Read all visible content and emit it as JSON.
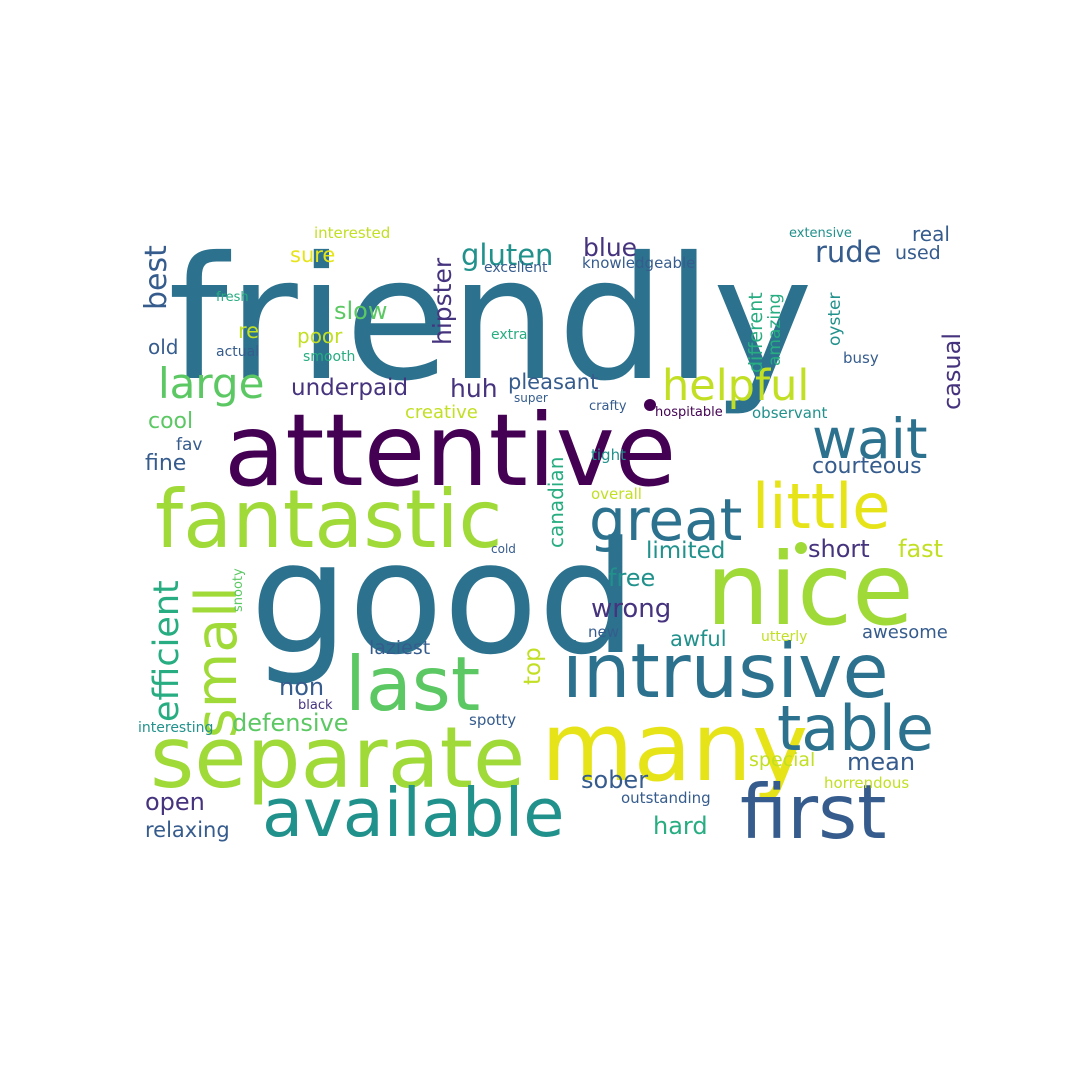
{
  "palette": {
    "dark_purple": "#440154",
    "indigo": "#46337e",
    "slate_blue": "#365c8d",
    "steel_teal": "#2c728e",
    "teal": "#21918c",
    "sea_green": "#27ad81",
    "green": "#5cc863",
    "lime": "#a0da39",
    "yellow_green": "#c2df23",
    "yellow": "#e6e419"
  },
  "words": [
    {
      "text": "friendly",
      "color": "steel_teal"
    },
    {
      "text": "attentive",
      "color": "dark_purple"
    },
    {
      "text": "good",
      "color": "steel_teal"
    },
    {
      "text": "nice",
      "color": "lime"
    },
    {
      "text": "fantastic",
      "color": "lime"
    },
    {
      "text": "many",
      "color": "yellow"
    },
    {
      "text": "separate",
      "color": "lime"
    },
    {
      "text": "intrusive",
      "color": "steel_teal"
    },
    {
      "text": "last",
      "color": "green"
    },
    {
      "text": "first",
      "color": "slate_blue"
    },
    {
      "text": "available",
      "color": "teal"
    },
    {
      "text": "table",
      "color": "steel_teal"
    },
    {
      "text": "little",
      "color": "yellow"
    },
    {
      "text": "great",
      "color": "steel_teal"
    },
    {
      "text": "wait",
      "color": "steel_teal"
    },
    {
      "text": "small",
      "color": "lime"
    },
    {
      "text": "helpful",
      "color": "yellow_green"
    },
    {
      "text": "large",
      "color": "green"
    },
    {
      "text": "efficient",
      "color": "sea_green"
    },
    {
      "text": "best",
      "color": "slate_blue"
    },
    {
      "text": "rude",
      "color": "slate_blue"
    },
    {
      "text": "gluten",
      "color": "teal"
    },
    {
      "text": "blue",
      "color": "indigo"
    },
    {
      "text": "hipster",
      "color": "indigo"
    },
    {
      "text": "casual",
      "color": "indigo"
    },
    {
      "text": "courteous",
      "color": "slate_blue"
    },
    {
      "text": "underpaid",
      "color": "indigo"
    },
    {
      "text": "huh",
      "color": "indigo"
    },
    {
      "text": "pleasant",
      "color": "slate_blue"
    },
    {
      "text": "short",
      "color": "indigo"
    },
    {
      "text": "fast",
      "color": "yellow_green"
    },
    {
      "text": "wrong",
      "color": "indigo"
    },
    {
      "text": "free",
      "color": "teal"
    },
    {
      "text": "limited",
      "color": "teal"
    },
    {
      "text": "canadian",
      "color": "sea_green"
    },
    {
      "text": "defensive",
      "color": "green"
    },
    {
      "text": "mean",
      "color": "slate_blue"
    },
    {
      "text": "hard",
      "color": "sea_green"
    },
    {
      "text": "open",
      "color": "indigo"
    },
    {
      "text": "sober",
      "color": "slate_blue"
    },
    {
      "text": "non",
      "color": "slate_blue"
    },
    {
      "text": "top",
      "color": "yellow_green"
    },
    {
      "text": "awful",
      "color": "teal"
    },
    {
      "text": "awesome",
      "color": "slate_blue"
    },
    {
      "text": "laziest",
      "color": "slate_blue"
    },
    {
      "text": "relaxing",
      "color": "slate_blue"
    },
    {
      "text": "special",
      "color": "yellow_green"
    },
    {
      "text": "slow",
      "color": "green"
    },
    {
      "text": "sure",
      "color": "yellow"
    },
    {
      "text": "cool",
      "color": "green"
    },
    {
      "text": "fine",
      "color": "slate_blue"
    },
    {
      "text": "re",
      "color": "yellow_green"
    },
    {
      "text": "poor",
      "color": "yellow_green"
    },
    {
      "text": "old",
      "color": "slate_blue"
    },
    {
      "text": "real",
      "color": "slate_blue"
    },
    {
      "text": "used",
      "color": "slate_blue"
    },
    {
      "text": "different",
      "color": "sea_green"
    },
    {
      "text": "amazing",
      "color": "sea_green"
    },
    {
      "text": "oyster",
      "color": "teal"
    },
    {
      "text": "fav",
      "color": "slate_blue"
    },
    {
      "text": "creative",
      "color": "yellow_green"
    },
    {
      "text": "busy",
      "color": "slate_blue"
    },
    {
      "text": "observant",
      "color": "teal"
    },
    {
      "text": "hospitable",
      "color": "dark_purple"
    },
    {
      "text": "crafty",
      "color": "slate_blue"
    },
    {
      "text": "super",
      "color": "slate_blue"
    },
    {
      "text": "tight",
      "color": "teal"
    },
    {
      "text": "overall",
      "color": "yellow_green"
    },
    {
      "text": "new",
      "color": "slate_blue"
    },
    {
      "text": "utterly",
      "color": "yellow_green"
    },
    {
      "text": "outstanding",
      "color": "slate_blue"
    },
    {
      "text": "horrendous",
      "color": "yellow_green"
    },
    {
      "text": "spotty",
      "color": "slate_blue"
    },
    {
      "text": "black",
      "color": "indigo"
    },
    {
      "text": "interesting",
      "color": "teal"
    },
    {
      "text": "snooty",
      "color": "green"
    },
    {
      "text": "cold",
      "color": "slate_blue"
    },
    {
      "text": "interested",
      "color": "yellow_green"
    },
    {
      "text": "extensive",
      "color": "teal"
    },
    {
      "text": "excellent",
      "color": "slate_blue"
    },
    {
      "text": "knowledgeable",
      "color": "slate_blue"
    },
    {
      "text": "fresh",
      "color": "sea_green"
    },
    {
      "text": "actual",
      "color": "slate_blue"
    },
    {
      "text": "smooth",
      "color": "sea_green"
    },
    {
      "text": "extra",
      "color": "sea_green"
    }
  ]
}
